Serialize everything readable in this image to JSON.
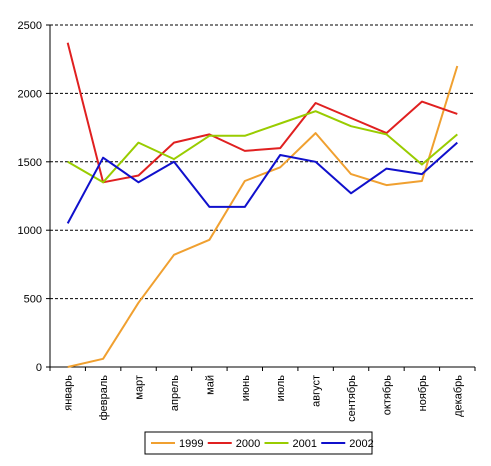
{
  "chart_data": {
    "type": "line",
    "categories": [
      "январь",
      "февраль",
      "март",
      "апрель",
      "май",
      "июнь",
      "июль",
      "август",
      "сентябрь",
      "октябрь",
      "ноябрь",
      "декабрь"
    ],
    "ylim": [
      0,
      2500
    ],
    "yticks": [
      0,
      500,
      1000,
      1500,
      2000,
      2500
    ],
    "grid": "horizontal-dashed",
    "legend": "bottom",
    "series": [
      {
        "name": "1999",
        "color": "#f0a030",
        "values": [
          0,
          60,
          470,
          820,
          930,
          1360,
          1460,
          1710,
          1410,
          1330,
          1360,
          2200
        ]
      },
      {
        "name": "2000",
        "color": "#e02020",
        "values": [
          2370,
          1350,
          1400,
          1640,
          1700,
          1580,
          1600,
          1930,
          1820,
          1710,
          1940,
          1850
        ]
      },
      {
        "name": "2001",
        "color": "#99cc00",
        "values": [
          1500,
          1350,
          1640,
          1520,
          1690,
          1690,
          1780,
          1870,
          1760,
          1700,
          1480,
          1700
        ]
      },
      {
        "name": "2002",
        "color": "#1010cc",
        "values": [
          1050,
          1530,
          1350,
          1500,
          1170,
          1170,
          1550,
          1500,
          1270,
          1450,
          1410,
          1640
        ]
      }
    ]
  }
}
